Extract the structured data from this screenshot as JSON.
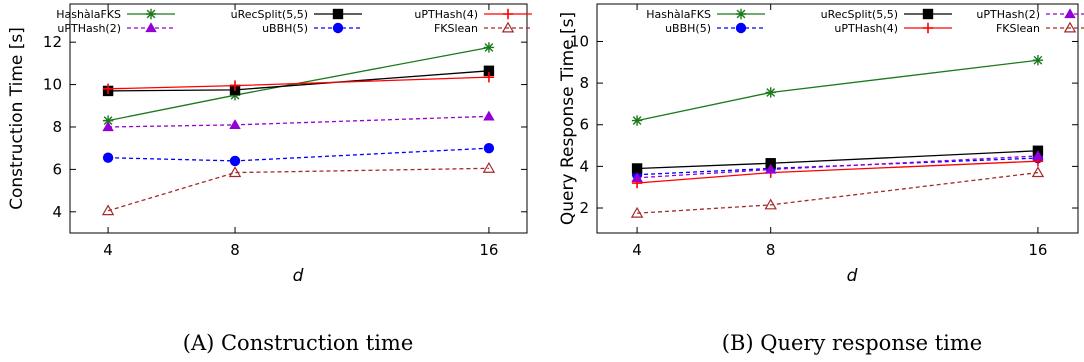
{
  "chart_data": [
    {
      "type": "line",
      "caption": "(A) Construction time",
      "xlabel": "d",
      "ylabel": "Construction Time [s]",
      "x": [
        4,
        8,
        16
      ],
      "xlim": [
        2.8,
        17.2
      ],
      "ylim": [
        3,
        13.8
      ],
      "yticks": [
        4,
        6,
        8,
        10,
        12
      ],
      "legend": "top",
      "series": [
        {
          "name": "HashàlaFKS",
          "values": [
            8.3,
            9.5,
            11.75
          ],
          "color": "#1a7a1a",
          "marker": "asterisk",
          "dash": "solid"
        },
        {
          "name": "uPTHash(2)",
          "values": [
            8.0,
            8.1,
            8.5
          ],
          "color": "#9400d3",
          "marker": "triangle",
          "dash": "dashed"
        },
        {
          "name": "uRecSplit(5,5)",
          "values": [
            9.7,
            9.75,
            10.65
          ],
          "color": "#000000",
          "marker": "square",
          "dash": "solid"
        },
        {
          "name": "uBBH(5)",
          "values": [
            6.55,
            6.4,
            7.0
          ],
          "color": "#0000ff",
          "marker": "circle",
          "dash": "dashed"
        },
        {
          "name": "uPTHash(4)",
          "values": [
            9.8,
            9.95,
            10.35
          ],
          "color": "#ff0000",
          "marker": "plus",
          "dash": "solid"
        },
        {
          "name": "FKSlean",
          "values": [
            4.05,
            5.85,
            6.05
          ],
          "color": "#a52a2a",
          "marker": "triangle-open",
          "dash": "dashed"
        }
      ]
    },
    {
      "type": "line",
      "caption": "(B) Query response time",
      "xlabel": "d",
      "ylabel": "Query Response Time [s]",
      "x": [
        4,
        8,
        16
      ],
      "xlim": [
        2.8,
        17.2
      ],
      "ylim": [
        0.8,
        11.8
      ],
      "yticks": [
        2,
        4,
        6,
        8,
        10
      ],
      "legend": "top",
      "series": [
        {
          "name": "HashàlaFKS",
          "values": [
            6.2,
            7.55,
            9.1
          ],
          "color": "#1a7a1a",
          "marker": "asterisk",
          "dash": "solid"
        },
        {
          "name": "uBBH(5)",
          "values": [
            3.6,
            3.9,
            4.4
          ],
          "color": "#0000ff",
          "marker": "circle",
          "dash": "dashed"
        },
        {
          "name": "uRecSplit(5,5)",
          "values": [
            3.9,
            4.15,
            4.75
          ],
          "color": "#000000",
          "marker": "square",
          "dash": "solid"
        },
        {
          "name": "uPTHash(4)",
          "values": [
            3.2,
            3.7,
            4.25
          ],
          "color": "#ff0000",
          "marker": "plus",
          "dash": "solid"
        },
        {
          "name": "uPTHash(2)",
          "values": [
            3.45,
            3.85,
            4.5
          ],
          "color": "#9400d3",
          "marker": "triangle",
          "dash": "dashed"
        },
        {
          "name": "FKSlean",
          "values": [
            1.75,
            2.15,
            3.7
          ],
          "color": "#a52a2a",
          "marker": "triangle-open",
          "dash": "dashed"
        }
      ]
    }
  ]
}
